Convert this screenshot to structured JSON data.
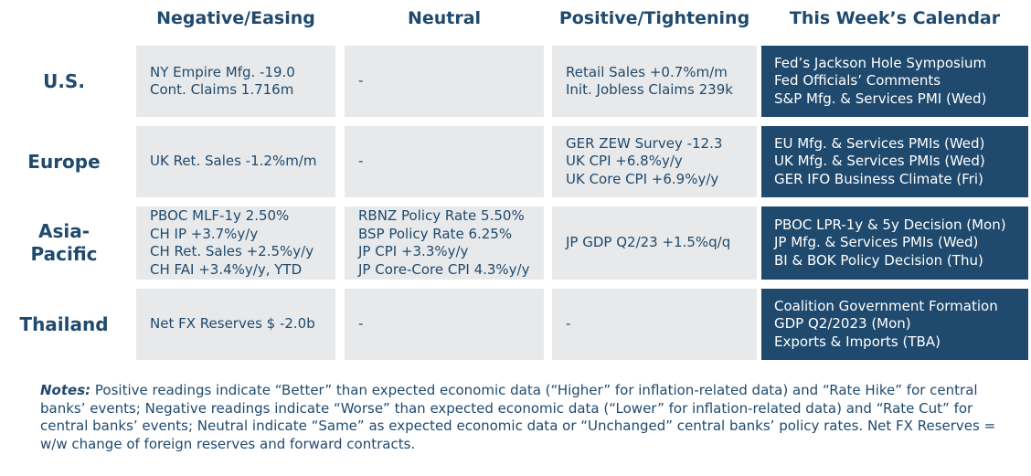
{
  "headers": {
    "negative": "Negative/Easing",
    "neutral": "Neutral",
    "positive": "Positive/Tightening",
    "calendar": "This Week’s Calendar"
  },
  "rows": {
    "us": {
      "label": "U.S.",
      "negative": [
        "NY Empire Mfg. -19.0",
        "Cont. Claims 1.716m"
      ],
      "neutral": [
        "-"
      ],
      "positive": [
        "Retail Sales +0.7%m/m",
        "Init. Jobless Claims 239k"
      ],
      "calendar": [
        "Fed’s Jackson Hole Symposium",
        "Fed Officials’ Comments",
        "S&P Mfg. & Services PMI (Wed)"
      ]
    },
    "europe": {
      "label": "Europe",
      "negative": [
        "UK Ret. Sales -1.2%m/m"
      ],
      "neutral": [
        "-"
      ],
      "positive": [
        "GER ZEW Survey -12.3",
        "UK CPI +6.8%y/y",
        "UK Core CPI +6.9%y/y"
      ],
      "calendar": [
        "EU Mfg. & Services PMIs (Wed)",
        "UK Mfg. & Services PMIs (Wed)",
        "GER IFO Business Climate (Fri)"
      ]
    },
    "asia": {
      "label_line1": "Asia-",
      "label_line2": "Pacific",
      "negative": [
        "PBOC MLF-1y 2.50%",
        "CH IP +3.7%y/y",
        "CH Ret. Sales +2.5%y/y",
        "CH FAI +3.4%y/y, YTD"
      ],
      "neutral": [
        "RBNZ Policy Rate 5.50%",
        "BSP Policy Rate 6.25%",
        "JP CPI +3.3%y/y",
        "JP Core-Core CPI 4.3%y/y"
      ],
      "positive": [
        "JP GDP Q2/23 +1.5%q/q"
      ],
      "calendar": [
        "PBOC LPR-1y & 5y Decision (Mon)",
        "JP Mfg. & Services PMIs (Wed)",
        "BI & BOK Policy Decision (Thu)"
      ]
    },
    "thailand": {
      "label": "Thailand",
      "negative": [
        "Net FX Reserves $ -2.0b"
      ],
      "neutral": [
        "-"
      ],
      "positive": [
        "-"
      ],
      "calendar": [
        "Coalition Government Formation",
        "GDP Q2/2023 (Mon)",
        "Exports & Imports (TBA)"
      ]
    }
  },
  "notes": {
    "label": "Notes:",
    "text": " Positive readings indicate “Better” than expected economic data (“Higher” for inflation-related data) and “Rate Hike” for central banks’ events; Negative readings indicate “Worse” than expected economic data (“Lower” for inflation-related data) and “Rate Cut” for central banks’ events; Neutral indicate “Same” as expected economic data or “Unchanged” central banks’ policy rates. Net FX Reserves = w/w change of foreign reserves and forward contracts."
  }
}
